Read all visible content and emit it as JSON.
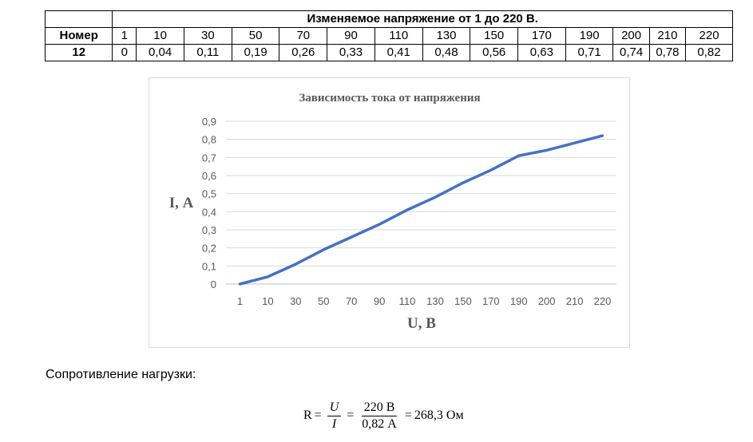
{
  "table": {
    "title": "Изменяемое напряжение от 1 до 220 В.",
    "header_label": "Номер",
    "voltages": [
      "1",
      "10",
      "30",
      "50",
      "70",
      "90",
      "110",
      "130",
      "150",
      "170",
      "190",
      "200",
      "210",
      "220"
    ],
    "row_label": "12",
    "currents": [
      "0",
      "0,04",
      "0,11",
      "0,19",
      "0,26",
      "0,33",
      "0,41",
      "0,48",
      "0,56",
      "0,63",
      "0,71",
      "0,74",
      "0,78",
      "0,82"
    ]
  },
  "chart_data": {
    "type": "line",
    "title": "Зависимость тока от напряжения",
    "xlabel": "U, В",
    "ylabel": "I, А",
    "categories": [
      "1",
      "10",
      "30",
      "50",
      "70",
      "90",
      "110",
      "130",
      "150",
      "170",
      "190",
      "200",
      "210",
      "220"
    ],
    "series": [
      {
        "values": [
          0,
          0.04,
          0.11,
          0.19,
          0.26,
          0.33,
          0.41,
          0.48,
          0.56,
          0.63,
          0.71,
          0.74,
          0.78,
          0.82
        ],
        "color": "#4472c4"
      }
    ],
    "yticks": [
      "0",
      "0,1",
      "0,2",
      "0,3",
      "0,4",
      "0,5",
      "0,6",
      "0,7",
      "0,8",
      "0,9"
    ],
    "ylim": [
      0,
      0.9
    ],
    "grid": true,
    "legend": "none"
  },
  "resistance": {
    "label": "Сопротивление нагрузки:",
    "lhs": "R",
    "eq1": "=",
    "num_symbol": "U",
    "den_symbol": "I",
    "eq2": "=",
    "num_value": "220 В",
    "den_value": "0,82 А",
    "eq3": "=",
    "result": "268,3 Ом"
  }
}
